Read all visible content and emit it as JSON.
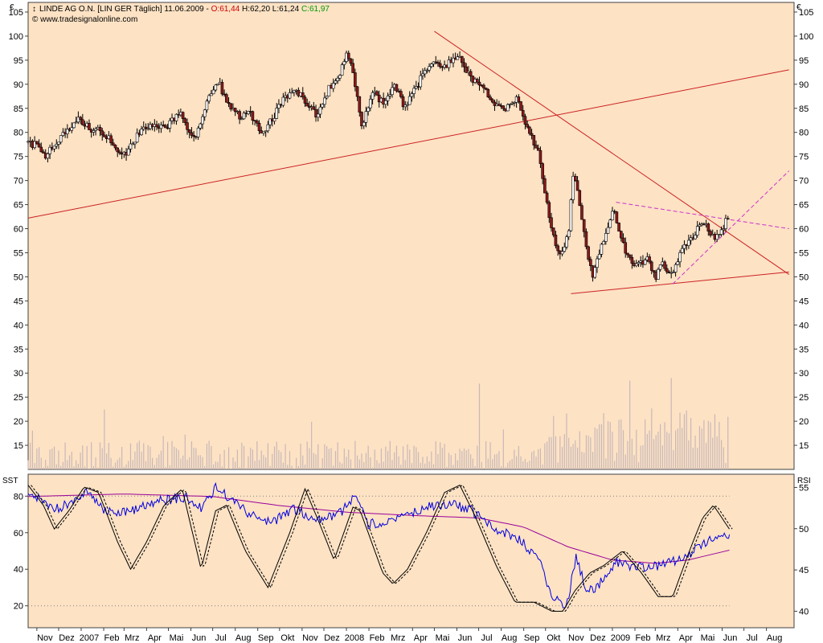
{
  "colors": {
    "panel_bg": "#fde2c4",
    "frame": "#404040",
    "price_candle_up": "#ffffff",
    "price_candle_down": "#8b1a1a",
    "volume": "#c8b8b8",
    "trendline": "#cc2222",
    "channel_dashed": "#cc33cc",
    "sst_line": "#000000",
    "rsi_line": "#0000dd",
    "rsi_ma": "#990099",
    "level_dotted": "#808080",
    "open_value": "#cc0000",
    "close_value": "#009900"
  },
  "header": {
    "instrument": "LINDE AG O.N. [LIN GER  Täglich] 11.06.2009 - ",
    "open_label": "O:",
    "open_value": "61,44",
    "high_low": " H:62,20 L:61,24 ",
    "close_label": "C:",
    "close_value": "61,97",
    "copyright": "© www.tradesignalonline.com"
  },
  "chart_data": [
    {
      "type": "candlestick",
      "panel": "price",
      "title": "LINDE AG O.N. [LIN GER  Täglich] 11.06.2009",
      "currency": "€",
      "ylim": [
        10,
        107
      ],
      "yticks": [
        15,
        20,
        25,
        30,
        35,
        40,
        45,
        50,
        55,
        60,
        65,
        70,
        75,
        80,
        85,
        90,
        95,
        100,
        105
      ],
      "last": {
        "open": 61.44,
        "high": 62.2,
        "low": 61.24,
        "close": 61.97
      },
      "price_path": [
        {
          "d": "2006-10-20",
          "v": 78
        },
        {
          "d": "2006-11-01",
          "v": 77.5
        },
        {
          "d": "2006-11-15",
          "v": 75
        },
        {
          "d": "2006-12-01",
          "v": 78
        },
        {
          "d": "2006-12-15",
          "v": 80
        },
        {
          "d": "2007-01-01",
          "v": 83
        },
        {
          "d": "2007-01-15",
          "v": 81
        },
        {
          "d": "2007-02-01",
          "v": 80
        },
        {
          "d": "2007-02-15",
          "v": 78
        },
        {
          "d": "2007-03-05",
          "v": 75
        },
        {
          "d": "2007-03-20",
          "v": 79
        },
        {
          "d": "2007-04-10",
          "v": 82
        },
        {
          "d": "2007-05-01",
          "v": 81
        },
        {
          "d": "2007-05-20",
          "v": 84
        },
        {
          "d": "2007-06-10",
          "v": 78
        },
        {
          "d": "2007-06-25",
          "v": 86
        },
        {
          "d": "2007-07-10",
          "v": 91
        },
        {
          "d": "2007-07-25",
          "v": 86
        },
        {
          "d": "2007-08-10",
          "v": 83
        },
        {
          "d": "2007-08-25",
          "v": 84
        },
        {
          "d": "2007-09-10",
          "v": 80
        },
        {
          "d": "2007-09-25",
          "v": 83
        },
        {
          "d": "2007-10-10",
          "v": 87
        },
        {
          "d": "2007-10-25",
          "v": 89
        },
        {
          "d": "2007-11-10",
          "v": 86
        },
        {
          "d": "2007-11-25",
          "v": 83
        },
        {
          "d": "2007-12-10",
          "v": 89
        },
        {
          "d": "2007-12-25",
          "v": 92
        },
        {
          "d": "2008-01-05",
          "v": 97
        },
        {
          "d": "2008-01-15",
          "v": 91
        },
        {
          "d": "2008-01-25",
          "v": 81
        },
        {
          "d": "2008-02-10",
          "v": 88
        },
        {
          "d": "2008-02-25",
          "v": 86
        },
        {
          "d": "2008-03-10",
          "v": 90
        },
        {
          "d": "2008-03-25",
          "v": 85
        },
        {
          "d": "2008-04-15",
          "v": 91
        },
        {
          "d": "2008-05-01",
          "v": 95
        },
        {
          "d": "2008-05-20",
          "v": 94
        },
        {
          "d": "2008-06-05",
          "v": 96
        },
        {
          "d": "2008-06-20",
          "v": 92
        },
        {
          "d": "2008-07-10",
          "v": 89
        },
        {
          "d": "2008-07-25",
          "v": 86
        },
        {
          "d": "2008-08-10",
          "v": 85
        },
        {
          "d": "2008-08-25",
          "v": 87
        },
        {
          "d": "2008-09-10",
          "v": 80
        },
        {
          "d": "2008-09-25",
          "v": 76
        },
        {
          "d": "2008-10-05",
          "v": 66
        },
        {
          "d": "2008-10-15",
          "v": 58
        },
        {
          "d": "2008-10-25",
          "v": 54
        },
        {
          "d": "2008-11-05",
          "v": 60
        },
        {
          "d": "2008-11-12",
          "v": 73
        },
        {
          "d": "2008-11-20",
          "v": 64
        },
        {
          "d": "2008-12-01",
          "v": 55
        },
        {
          "d": "2008-12-08",
          "v": 50
        },
        {
          "d": "2008-12-20",
          "v": 56
        },
        {
          "d": "2009-01-06",
          "v": 64
        },
        {
          "d": "2009-01-20",
          "v": 56
        },
        {
          "d": "2009-02-05",
          "v": 52
        },
        {
          "d": "2009-02-20",
          "v": 54
        },
        {
          "d": "2009-03-05",
          "v": 50
        },
        {
          "d": "2009-03-15",
          "v": 53
        },
        {
          "d": "2009-03-25",
          "v": 50
        },
        {
          "d": "2009-04-10",
          "v": 56
        },
        {
          "d": "2009-04-25",
          "v": 58
        },
        {
          "d": "2009-05-08",
          "v": 62
        },
        {
          "d": "2009-05-20",
          "v": 58
        },
        {
          "d": "2009-06-01",
          "v": 59
        },
        {
          "d": "2009-06-11",
          "v": 61.97
        }
      ],
      "lines": [
        {
          "name": "support-uptrend",
          "style": "solid",
          "from": {
            "d": "2006-10-20",
            "v": 62.2
          },
          "to": {
            "d": "2009-09-01",
            "v": 93
          }
        },
        {
          "name": "resistance-downtrend",
          "style": "solid",
          "from": {
            "d": "2008-05-01",
            "v": 101
          },
          "to": {
            "d": "2009-09-01",
            "v": 50.5
          }
        },
        {
          "name": "low-support",
          "style": "solid",
          "from": {
            "d": "2008-11-05",
            "v": 46.5
          },
          "to": {
            "d": "2009-09-01",
            "v": 51
          }
        },
        {
          "name": "channel-top",
          "style": "dashed",
          "from": {
            "d": "2009-01-06",
            "v": 65.5
          },
          "to": {
            "d": "2009-09-01",
            "v": 60
          }
        },
        {
          "name": "channel-bottom",
          "style": "dashed",
          "from": {
            "d": "2009-03-25",
            "v": 48.5
          },
          "to": {
            "d": "2009-09-01",
            "v": 72
          }
        }
      ]
    },
    {
      "type": "line",
      "panel": "indicator",
      "left_label": "SST",
      "right_label": "RSI",
      "left_ylim": [
        8,
        92
      ],
      "left_yticks": [
        20,
        40,
        60,
        80
      ],
      "right_ylim": [
        38,
        56.6
      ],
      "right_yticks": [
        40,
        45,
        50,
        55
      ],
      "reference_levels": [
        20,
        80
      ],
      "sst_path": [
        {
          "d": "2006-10-20",
          "v": 86
        },
        {
          "d": "2006-11-10",
          "v": 75
        },
        {
          "d": "2006-11-25",
          "v": 62
        },
        {
          "d": "2006-12-15",
          "v": 72
        },
        {
          "d": "2007-01-05",
          "v": 85
        },
        {
          "d": "2007-01-25",
          "v": 82
        },
        {
          "d": "2007-02-20",
          "v": 55
        },
        {
          "d": "2007-03-10",
          "v": 40
        },
        {
          "d": "2007-04-01",
          "v": 55
        },
        {
          "d": "2007-04-25",
          "v": 75
        },
        {
          "d": "2007-05-20",
          "v": 84
        },
        {
          "d": "2007-06-15",
          "v": 40
        },
        {
          "d": "2007-07-05",
          "v": 72
        },
        {
          "d": "2007-07-20",
          "v": 75
        },
        {
          "d": "2007-08-15",
          "v": 50
        },
        {
          "d": "2007-09-15",
          "v": 30
        },
        {
          "d": "2007-10-15",
          "v": 60
        },
        {
          "d": "2007-11-05",
          "v": 84
        },
        {
          "d": "2007-11-25",
          "v": 65
        },
        {
          "d": "2007-12-15",
          "v": 45
        },
        {
          "d": "2008-01-10",
          "v": 74
        },
        {
          "d": "2008-01-20",
          "v": 72
        },
        {
          "d": "2008-02-20",
          "v": 38
        },
        {
          "d": "2008-03-05",
          "v": 32
        },
        {
          "d": "2008-03-25",
          "v": 40
        },
        {
          "d": "2008-04-20",
          "v": 60
        },
        {
          "d": "2008-05-15",
          "v": 82
        },
        {
          "d": "2008-06-05",
          "v": 86
        },
        {
          "d": "2008-06-25",
          "v": 70
        },
        {
          "d": "2008-07-25",
          "v": 42
        },
        {
          "d": "2008-08-20",
          "v": 22
        },
        {
          "d": "2008-09-15",
          "v": 22
        },
        {
          "d": "2008-10-10",
          "v": 17
        },
        {
          "d": "2008-10-25",
          "v": 17
        },
        {
          "d": "2008-11-10",
          "v": 28
        },
        {
          "d": "2008-12-01",
          "v": 38
        },
        {
          "d": "2008-12-20",
          "v": 42
        },
        {
          "d": "2009-01-15",
          "v": 50
        },
        {
          "d": "2009-02-10",
          "v": 38
        },
        {
          "d": "2009-03-05",
          "v": 25
        },
        {
          "d": "2009-03-25",
          "v": 25
        },
        {
          "d": "2009-04-15",
          "v": 48
        },
        {
          "d": "2009-05-05",
          "v": 68
        },
        {
          "d": "2009-05-20",
          "v": 75
        },
        {
          "d": "2009-06-11",
          "v": 62
        }
      ],
      "rsi_path": [
        {
          "d": "2006-10-20",
          "v": 54.5
        },
        {
          "d": "2006-12-01",
          "v": 52.3
        },
        {
          "d": "2007-01-10",
          "v": 54.6
        },
        {
          "d": "2007-02-05",
          "v": 52.0
        },
        {
          "d": "2007-03-15",
          "v": 52.2
        },
        {
          "d": "2007-04-20",
          "v": 53.4
        },
        {
          "d": "2007-05-25",
          "v": 53.8
        },
        {
          "d": "2007-06-15",
          "v": 52.5
        },
        {
          "d": "2007-07-05",
          "v": 55.0
        },
        {
          "d": "2007-07-25",
          "v": 53.6
        },
        {
          "d": "2007-08-25",
          "v": 51.5
        },
        {
          "d": "2007-09-20",
          "v": 50.6
        },
        {
          "d": "2007-10-20",
          "v": 52.5
        },
        {
          "d": "2007-11-20",
          "v": 51.0
        },
        {
          "d": "2007-12-20",
          "v": 51.6
        },
        {
          "d": "2008-01-15",
          "v": 54.0
        },
        {
          "d": "2008-01-30",
          "v": 50.5
        },
        {
          "d": "2008-03-10",
          "v": 51.0
        },
        {
          "d": "2008-04-15",
          "v": 52.5
        },
        {
          "d": "2008-05-20",
          "v": 53.0
        },
        {
          "d": "2008-06-20",
          "v": 52.3
        },
        {
          "d": "2008-07-20",
          "v": 50.0
        },
        {
          "d": "2008-08-25",
          "v": 48.8
        },
        {
          "d": "2008-09-20",
          "v": 46.5
        },
        {
          "d": "2008-10-10",
          "v": 42.0
        },
        {
          "d": "2008-10-30",
          "v": 40.5
        },
        {
          "d": "2008-11-12",
          "v": 46.6
        },
        {
          "d": "2008-11-25",
          "v": 43.0
        },
        {
          "d": "2008-12-10",
          "v": 42.8
        },
        {
          "d": "2009-01-06",
          "v": 46.0
        },
        {
          "d": "2009-02-05",
          "v": 45.3
        },
        {
          "d": "2009-03-10",
          "v": 45.6
        },
        {
          "d": "2009-04-10",
          "v": 46.5
        },
        {
          "d": "2009-05-10",
          "v": 48.5
        },
        {
          "d": "2009-06-11",
          "v": 49.3
        }
      ],
      "rsi_ma_path": [
        {
          "d": "2006-10-20",
          "v": 53.9
        },
        {
          "d": "2007-03-01",
          "v": 54.2
        },
        {
          "d": "2007-07-01",
          "v": 53.9
        },
        {
          "d": "2007-10-01",
          "v": 52.8
        },
        {
          "d": "2008-01-01",
          "v": 52.0
        },
        {
          "d": "2008-04-01",
          "v": 51.6
        },
        {
          "d": "2008-07-01",
          "v": 51.3
        },
        {
          "d": "2008-09-01",
          "v": 50.2
        },
        {
          "d": "2008-11-01",
          "v": 47.8
        },
        {
          "d": "2009-01-01",
          "v": 46.2
        },
        {
          "d": "2009-03-01",
          "v": 45.8
        },
        {
          "d": "2009-04-15",
          "v": 46.2
        },
        {
          "d": "2009-06-11",
          "v": 47.4
        }
      ]
    }
  ],
  "time_axis": {
    "start": "2006-10-20",
    "end": "2009-09-08",
    "ticks": [
      {
        "label": "Nov",
        "d": "2006-11-01"
      },
      {
        "label": "Dez",
        "d": "2006-12-01"
      },
      {
        "label": "2007",
        "d": "2007-01-01"
      },
      {
        "label": "Feb",
        "d": "2007-02-01"
      },
      {
        "label": "Mrz",
        "d": "2007-03-01"
      },
      {
        "label": "Apr",
        "d": "2007-04-01"
      },
      {
        "label": "Mai",
        "d": "2007-05-01"
      },
      {
        "label": "Jun",
        "d": "2007-06-01"
      },
      {
        "label": "Jul",
        "d": "2007-07-01"
      },
      {
        "label": "Aug",
        "d": "2007-08-01"
      },
      {
        "label": "Sep",
        "d": "2007-09-01"
      },
      {
        "label": "Okt",
        "d": "2007-10-01"
      },
      {
        "label": "Nov",
        "d": "2007-11-01"
      },
      {
        "label": "Dez",
        "d": "2007-12-01"
      },
      {
        "label": "2008",
        "d": "2008-01-01"
      },
      {
        "label": "Feb",
        "d": "2008-02-01"
      },
      {
        "label": "Mrz",
        "d": "2008-03-01"
      },
      {
        "label": "Apr",
        "d": "2008-04-01"
      },
      {
        "label": "Mai",
        "d": "2008-05-01"
      },
      {
        "label": "Jun",
        "d": "2008-06-01"
      },
      {
        "label": "Jul",
        "d": "2008-07-01"
      },
      {
        "label": "Aug",
        "d": "2008-08-01"
      },
      {
        "label": "Sep",
        "d": "2008-09-01"
      },
      {
        "label": "Okt",
        "d": "2008-10-01"
      },
      {
        "label": "Nov",
        "d": "2008-11-01"
      },
      {
        "label": "Dez",
        "d": "2008-12-01"
      },
      {
        "label": "2009",
        "d": "2009-01-01"
      },
      {
        "label": "Feb",
        "d": "2009-02-01"
      },
      {
        "label": "Mrz",
        "d": "2009-03-01"
      },
      {
        "label": "Apr",
        "d": "2009-04-01"
      },
      {
        "label": "Mai",
        "d": "2009-05-01"
      },
      {
        "label": "Jun",
        "d": "2009-06-01"
      },
      {
        "label": "Jul",
        "d": "2009-07-01"
      },
      {
        "label": "Aug",
        "d": "2009-08-01"
      }
    ]
  }
}
